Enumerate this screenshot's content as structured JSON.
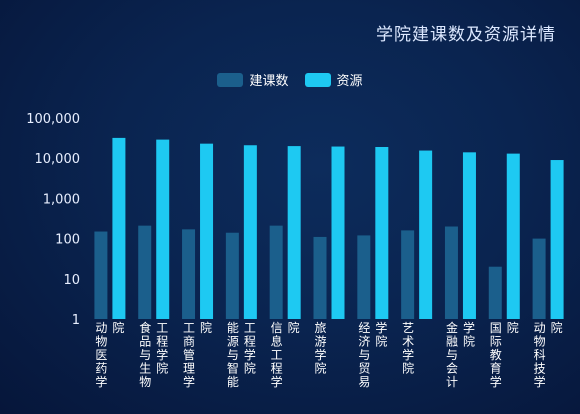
{
  "chart_data": {
    "type": "bar",
    "title": "学院建课数及资源详情",
    "yscale": "log",
    "ylim": [
      1,
      100000
    ],
    "yticks": [
      "100,000",
      "10,000",
      "1,000",
      "100",
      "10",
      "1"
    ],
    "yticks_values": [
      100000,
      10000,
      1000,
      100,
      10,
      1
    ],
    "legend_position": "top-center",
    "categories": [
      "动物医药学院",
      "食品与生物工程学院",
      "工商管理学院",
      "能源与智能工程学院",
      "信息工程学院",
      "旅游学院",
      "经济与贸易学院",
      "艺术学院",
      "金融与会计学院",
      "国际教育学院",
      "动物科技学院"
    ],
    "series": [
      {
        "name": "建课数",
        "color": "#1b5f8c",
        "values": [
          150,
          210,
          170,
          140,
          210,
          110,
          120,
          160,
          200,
          20,
          100
        ]
      },
      {
        "name": "资源",
        "color": "#1ec9f2",
        "values": [
          32000,
          29000,
          23000,
          21000,
          20000,
          19500,
          19000,
          15500,
          14000,
          13000,
          9000
        ]
      }
    ]
  }
}
